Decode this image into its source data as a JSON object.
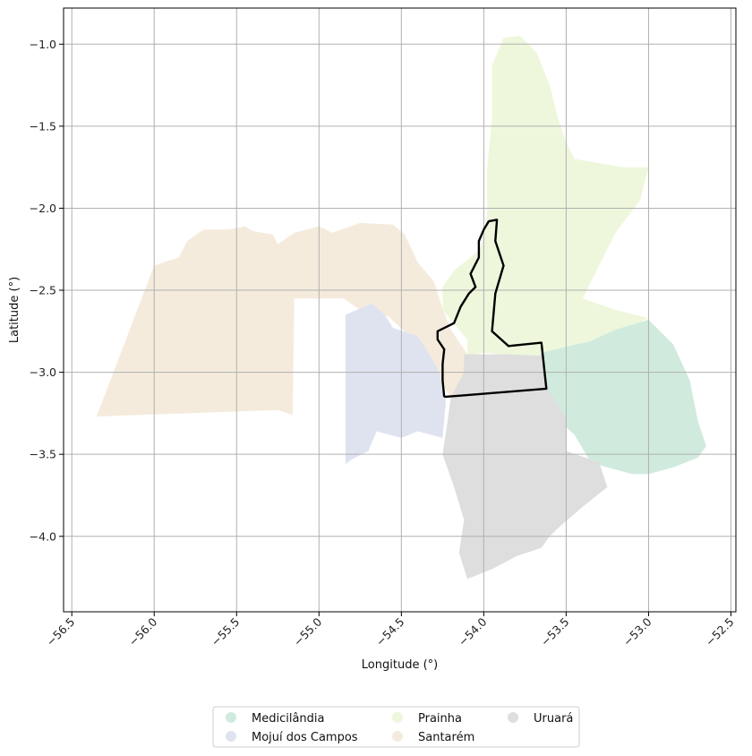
{
  "chart_data": {
    "type": "map",
    "xlabel": "Longitude (°)",
    "ylabel": "Latitude (°)",
    "xlim": [
      -56.55,
      -52.47
    ],
    "ylim": [
      -4.46,
      -0.78
    ],
    "grid": true,
    "legend_position": "bottom-center",
    "x_ticks": [
      {
        "value": -56.5,
        "label": "−56.5"
      },
      {
        "value": -56.0,
        "label": "−56.0"
      },
      {
        "value": -55.5,
        "label": "−55.5"
      },
      {
        "value": -55.0,
        "label": "−55.0"
      },
      {
        "value": -54.5,
        "label": "−54.5"
      },
      {
        "value": -54.0,
        "label": "−54.0"
      },
      {
        "value": -53.5,
        "label": "−53.5"
      },
      {
        "value": -53.0,
        "label": "−53.0"
      },
      {
        "value": -52.5,
        "label": "−52.5"
      }
    ],
    "y_ticks": [
      {
        "value": -1.0,
        "label": "−1.0"
      },
      {
        "value": -1.5,
        "label": "−1.5"
      },
      {
        "value": -2.0,
        "label": "−2.0"
      },
      {
        "value": -2.5,
        "label": "−2.5"
      },
      {
        "value": -3.0,
        "label": "−3.0"
      },
      {
        "value": -3.5,
        "label": "−3.5"
      },
      {
        "value": -4.0,
        "label": "−4.0"
      }
    ],
    "regions": [
      {
        "name": "Santarém",
        "color": "#f5ebdd",
        "coords": [
          [
            -56.35,
            -3.27
          ],
          [
            -55.25,
            -3.23
          ],
          [
            -55.16,
            -3.26
          ],
          [
            -55.15,
            -2.55
          ],
          [
            -54.85,
            -2.55
          ],
          [
            -54.75,
            -2.62
          ],
          [
            -54.58,
            -2.66
          ],
          [
            -54.45,
            -2.78
          ],
          [
            -54.35,
            -2.95
          ],
          [
            -54.2,
            -3.15
          ],
          [
            -54.12,
            -3.06
          ],
          [
            -54.1,
            -2.89
          ],
          [
            -54.2,
            -2.74
          ],
          [
            -54.25,
            -2.61
          ],
          [
            -54.3,
            -2.45
          ],
          [
            -54.4,
            -2.33
          ],
          [
            -54.48,
            -2.16
          ],
          [
            -54.55,
            -2.1
          ],
          [
            -54.75,
            -2.09
          ],
          [
            -54.92,
            -2.15
          ],
          [
            -55.0,
            -2.11
          ],
          [
            -55.15,
            -2.15
          ],
          [
            -55.25,
            -2.22
          ],
          [
            -55.28,
            -2.16
          ],
          [
            -55.4,
            -2.14
          ],
          [
            -55.45,
            -2.11
          ],
          [
            -55.55,
            -2.13
          ],
          [
            -55.7,
            -2.13
          ],
          [
            -55.8,
            -2.2
          ],
          [
            -55.85,
            -2.3
          ],
          [
            -56.0,
            -2.35
          ]
        ]
      },
      {
        "name": "Mojuí dos Campos",
        "color": "#dfe3f0",
        "coords": [
          [
            -54.84,
            -2.65
          ],
          [
            -54.68,
            -2.58
          ],
          [
            -54.6,
            -2.65
          ],
          [
            -54.55,
            -2.73
          ],
          [
            -54.4,
            -2.78
          ],
          [
            -54.33,
            -2.89
          ],
          [
            -54.27,
            -3.0
          ],
          [
            -54.25,
            -3.1
          ],
          [
            -54.23,
            -3.18
          ],
          [
            -54.25,
            -3.4
          ],
          [
            -54.4,
            -3.36
          ],
          [
            -54.5,
            -3.4
          ],
          [
            -54.65,
            -3.36
          ],
          [
            -54.7,
            -3.48
          ],
          [
            -54.8,
            -3.53
          ],
          [
            -54.84,
            -3.56
          ]
        ]
      },
      {
        "name": "Prainha",
        "color": "#eef7dc",
        "coords": [
          [
            -53.95,
            -1.13
          ],
          [
            -53.88,
            -0.96
          ],
          [
            -53.78,
            -0.95
          ],
          [
            -53.68,
            -1.05
          ],
          [
            -53.6,
            -1.25
          ],
          [
            -53.55,
            -1.45
          ],
          [
            -53.5,
            -1.6
          ],
          [
            -53.45,
            -1.7
          ],
          [
            -53.15,
            -1.75
          ],
          [
            -53.0,
            -1.75
          ],
          [
            -53.05,
            -1.95
          ],
          [
            -53.2,
            -2.15
          ],
          [
            -53.3,
            -2.35
          ],
          [
            -53.4,
            -2.55
          ],
          [
            -53.2,
            -2.62
          ],
          [
            -53.0,
            -2.67
          ],
          [
            -53.1,
            -2.72
          ],
          [
            -53.3,
            -2.8
          ],
          [
            -53.5,
            -2.9
          ],
          [
            -53.8,
            -2.9
          ],
          [
            -54.0,
            -2.88
          ],
          [
            -54.1,
            -2.9
          ],
          [
            -54.1,
            -2.8
          ],
          [
            -54.25,
            -2.62
          ],
          [
            -54.25,
            -2.48
          ],
          [
            -54.18,
            -2.38
          ],
          [
            -54.02,
            -2.25
          ],
          [
            -53.98,
            -2.05
          ],
          [
            -53.98,
            -1.75
          ],
          [
            -53.95,
            -1.45
          ]
        ]
      },
      {
        "name": "Medicilândia",
        "color": "#d0ebdd",
        "coords": [
          [
            -53.65,
            -2.88
          ],
          [
            -53.35,
            -2.81
          ],
          [
            -53.2,
            -2.74
          ],
          [
            -53.0,
            -2.68
          ],
          [
            -52.9,
            -2.78
          ],
          [
            -52.85,
            -2.83
          ],
          [
            -52.75,
            -3.05
          ],
          [
            -52.7,
            -3.3
          ],
          [
            -52.65,
            -3.45
          ],
          [
            -52.7,
            -3.52
          ],
          [
            -52.85,
            -3.58
          ],
          [
            -53.0,
            -3.62
          ],
          [
            -53.1,
            -3.62
          ],
          [
            -53.25,
            -3.58
          ],
          [
            -53.35,
            -3.55
          ],
          [
            -53.45,
            -3.38
          ],
          [
            -53.65,
            -3.2
          ],
          [
            -53.75,
            -3.0
          ]
        ]
      },
      {
        "name": "Uruará",
        "color": "#dedede",
        "coords": [
          [
            -54.12,
            -2.89
          ],
          [
            -53.85,
            -2.89
          ],
          [
            -53.65,
            -2.9
          ],
          [
            -53.6,
            -3.12
          ],
          [
            -53.5,
            -3.28
          ],
          [
            -53.5,
            -3.48
          ],
          [
            -53.3,
            -3.55
          ],
          [
            -53.25,
            -3.7
          ],
          [
            -53.4,
            -3.82
          ],
          [
            -53.55,
            -3.95
          ],
          [
            -53.6,
            -4.0
          ],
          [
            -53.65,
            -4.07
          ],
          [
            -53.8,
            -4.12
          ],
          [
            -53.95,
            -4.2
          ],
          [
            -54.1,
            -4.26
          ],
          [
            -54.15,
            -4.1
          ],
          [
            -54.12,
            -3.9
          ],
          [
            -54.18,
            -3.7
          ],
          [
            -54.25,
            -3.5
          ],
          [
            -54.22,
            -3.3
          ],
          [
            -54.2,
            -3.15
          ],
          [
            -54.12,
            -3.0
          ]
        ]
      }
    ],
    "highlight_outline": {
      "color": "#000000",
      "coords": [
        [
          -54.24,
          -3.15
        ],
        [
          -53.62,
          -3.1
        ],
        [
          -53.65,
          -2.82
        ],
        [
          -53.85,
          -2.84
        ],
        [
          -53.95,
          -2.75
        ],
        [
          -53.93,
          -2.52
        ],
        [
          -53.88,
          -2.35
        ],
        [
          -53.93,
          -2.2
        ],
        [
          -53.92,
          -2.07
        ],
        [
          -53.97,
          -2.08
        ],
        [
          -54.0,
          -2.13
        ],
        [
          -54.03,
          -2.2
        ],
        [
          -54.03,
          -2.3
        ],
        [
          -54.08,
          -2.4
        ],
        [
          -54.05,
          -2.48
        ],
        [
          -54.09,
          -2.52
        ],
        [
          -54.14,
          -2.6
        ],
        [
          -54.18,
          -2.7
        ],
        [
          -54.28,
          -2.75
        ],
        [
          -54.28,
          -2.8
        ],
        [
          -54.24,
          -2.86
        ],
        [
          -54.25,
          -2.95
        ],
        [
          -54.25,
          -3.05
        ],
        [
          -54.24,
          -3.15
        ]
      ]
    },
    "legend": [
      {
        "label": "Medicilândia",
        "color": "#d0ebdd"
      },
      {
        "label": "Mojuí dos Campos",
        "color": "#dfe3f0"
      },
      {
        "label": "Prainha",
        "color": "#eef7dc"
      },
      {
        "label": "Santarém",
        "color": "#f5ebdd"
      },
      {
        "label": "Uruará",
        "color": "#dedede"
      }
    ]
  }
}
